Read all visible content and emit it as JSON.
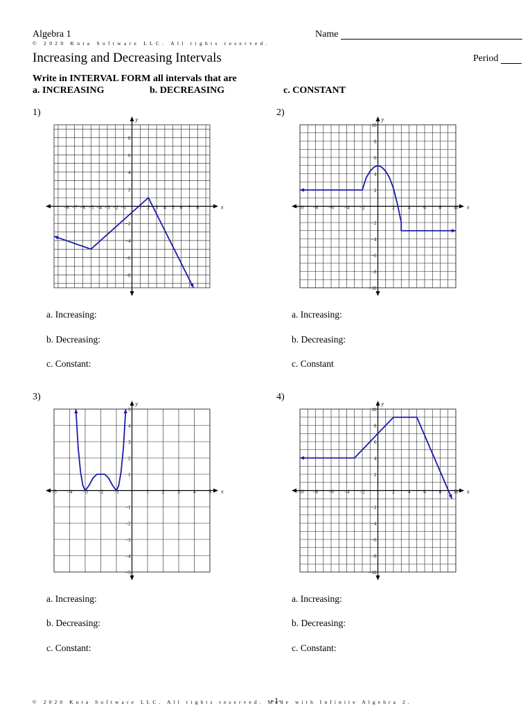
{
  "header": {
    "course": "Algebra 1",
    "copyright": "© 2020 Kuta Software LLC. All rights reserved.",
    "name_label": "Name",
    "title": "Increasing and Decreasing Intervals",
    "period_label": "Period"
  },
  "instructions": {
    "line": "Write in INTERVAL FORM all intervals that are",
    "a": "a. INCREASING",
    "b": "b. DECREASING",
    "c": "c. CONSTANT"
  },
  "problems": [
    {
      "number": "1)",
      "increasing": "a. Increasing:",
      "decreasing": "b. Decreasing:",
      "constant": "c. Constant:"
    },
    {
      "number": "2)",
      "increasing": "a. Increasing:",
      "decreasing": "b. Decreasing:",
      "constant": "c. Constant"
    },
    {
      "number": "3)",
      "increasing": "a. Increasing:",
      "decreasing": "b. Decreasing:",
      "constant": "c. Constant:"
    },
    {
      "number": "4)",
      "increasing": "a. Increasing:",
      "decreasing": "b. Decreasing:",
      "constant": "c. Constant:"
    }
  ],
  "chart_data": [
    {
      "type": "line",
      "xlim": [
        -9.5,
        9.5
      ],
      "ylim": [
        -9.5,
        9.5
      ],
      "grid": true,
      "xlabel": "x",
      "ylabel": "y",
      "x_ticks": [
        "-8",
        "-7",
        "-6",
        "-5",
        "-4",
        "-3",
        "-2",
        "-1",
        "1",
        "2",
        "3",
        "4",
        "5",
        "6",
        "7",
        "8"
      ],
      "x_tick_values": [
        -8,
        -7,
        -6,
        -5,
        -4,
        -3,
        -2,
        -1,
        1,
        2,
        3,
        4,
        5,
        6,
        7,
        8
      ],
      "y_ticks": [
        "8",
        "6",
        "4",
        "2",
        "-2",
        "-4",
        "-6",
        "-8"
      ],
      "y_tick_values": [
        8,
        6,
        4,
        2,
        -2,
        -4,
        -6,
        -8
      ],
      "series": [
        {
          "x": [
            -9.5,
            -5,
            2,
            7.5
          ],
          "y": [
            -3.5,
            -5,
            1,
            -10
          ]
        }
      ],
      "arrows": [
        "start",
        "end"
      ],
      "color": "#1a1aa8"
    },
    {
      "type": "line",
      "xlim": [
        -10,
        10
      ],
      "ylim": [
        -10,
        10
      ],
      "grid": true,
      "xlabel": "x",
      "ylabel": "y",
      "x_ticks": [
        "-10",
        "-8",
        "-6",
        "-4",
        "-2",
        "2",
        "4",
        "6",
        "8",
        "10"
      ],
      "x_tick_values": [
        -10,
        -8,
        -6,
        -4,
        -2,
        2,
        4,
        6,
        8,
        10
      ],
      "y_ticks": [
        "10",
        "8",
        "6",
        "4",
        "2",
        "-2",
        "-4",
        "-6",
        "-8",
        "-10"
      ],
      "y_tick_values": [
        10,
        8,
        6,
        4,
        2,
        -2,
        -4,
        -6,
        -8,
        -10
      ],
      "series": [
        {
          "x": [
            -10,
            -2,
            -1.5,
            -1,
            -0.5,
            0,
            0.5,
            1,
            1.5,
            2,
            2.5,
            3,
            3,
            10
          ],
          "y": [
            2,
            2,
            3.5,
            4.3,
            4.8,
            5,
            4.8,
            4.3,
            3.5,
            2.2,
            0.3,
            -2,
            -3,
            -3
          ]
        }
      ],
      "arrows": [
        "start",
        "end"
      ],
      "color": "#1a1aa8"
    },
    {
      "type": "line",
      "xlim": [
        -5,
        5
      ],
      "ylim": [
        -5,
        5
      ],
      "grid": true,
      "xlabel": "x",
      "ylabel": "y",
      "x_ticks": [
        "-5",
        "-4",
        "-3",
        "-2",
        "-1",
        "1",
        "2",
        "3",
        "4",
        "5"
      ],
      "x_tick_values": [
        -5,
        -4,
        -3,
        -2,
        -1,
        1,
        2,
        3,
        4,
        5
      ],
      "y_ticks": [
        "5",
        "4",
        "3",
        "2",
        "1",
        "-1",
        "-2",
        "-3",
        "-4",
        "-5"
      ],
      "y_tick_values": [
        5,
        4,
        3,
        2,
        1,
        -1,
        -2,
        -3,
        -4,
        -5
      ],
      "series": [
        {
          "x": [
            -3.6,
            -3.45,
            -3.3,
            -3.15,
            -3,
            -2.75,
            -2.5,
            -2.25,
            -2,
            -1.75,
            -1.5,
            -1.25,
            -1,
            -0.85,
            -0.7,
            -0.55,
            -0.4
          ],
          "y": [
            5,
            2.6,
            1.15,
            0.31,
            0,
            0.32,
            0.77,
            1.0,
            1.0,
            1.0,
            0.77,
            0.32,
            0,
            0.31,
            1.15,
            2.6,
            5
          ]
        }
      ],
      "arrows": [
        "start",
        "end"
      ],
      "color": "#1a1aa8"
    },
    {
      "type": "line",
      "xlim": [
        -10,
        10
      ],
      "ylim": [
        -10,
        10
      ],
      "grid": true,
      "xlabel": "x",
      "ylabel": "y",
      "x_ticks": [
        "-10",
        "-8",
        "-6",
        "-4",
        "-2",
        "2",
        "4",
        "6",
        "8",
        "10"
      ],
      "x_tick_values": [
        -10,
        -8,
        -6,
        -4,
        -2,
        2,
        4,
        6,
        8,
        10
      ],
      "y_ticks": [
        "10",
        "8",
        "6",
        "4",
        "2",
        "-2",
        "-4",
        "-6",
        "-8",
        "-10"
      ],
      "y_tick_values": [
        10,
        8,
        6,
        4,
        2,
        -2,
        -4,
        -6,
        -8,
        -10
      ],
      "series": [
        {
          "x": [
            -10,
            -3,
            2,
            5,
            9.5
          ],
          "y": [
            4,
            4,
            9,
            9,
            -1
          ]
        }
      ],
      "arrows": [
        "start",
        "end"
      ],
      "color": "#1a1aa8"
    }
  ],
  "footer": {
    "text": "© 2020 Kuta Software LLC. All rights reserved. Made with Infinite Algebra 2.",
    "page": "-1-"
  }
}
